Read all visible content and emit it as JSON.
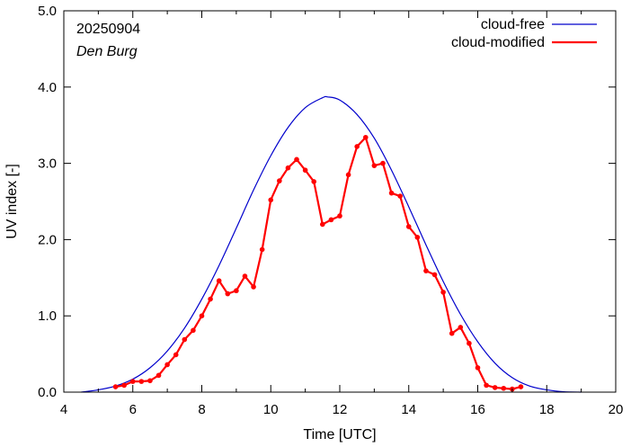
{
  "chart_data": {
    "type": "line",
    "xlabel": "Time  [UTC]",
    "ylabel": "UV index  [-]",
    "xlim": [
      4,
      20
    ],
    "ylim": [
      0,
      5
    ],
    "xticks": [
      4,
      6,
      8,
      10,
      12,
      14,
      16,
      18,
      20
    ],
    "yticks": [
      0,
      1,
      2,
      3,
      4,
      5
    ],
    "xtick_labels": [
      "4",
      "6",
      "8",
      "10",
      "12",
      "14",
      "16",
      "18",
      "20"
    ],
    "ytick_labels": [
      "0.0",
      "1.0",
      "2.0",
      "3.0",
      "4.0",
      "5.0"
    ],
    "grid": false,
    "legend_position": "top-right",
    "annotations": [
      "20250904",
      "Den Burg"
    ],
    "series": [
      {
        "name": "cloud-free",
        "color": "#0000cc",
        "markers": false,
        "x": [
          4.5,
          5.0,
          5.5,
          6.0,
          6.5,
          7.0,
          7.5,
          8.0,
          8.5,
          9.0,
          9.5,
          10.0,
          10.5,
          11.0,
          11.5,
          11.65,
          12.0,
          12.5,
          13.0,
          13.5,
          14.0,
          14.5,
          15.0,
          15.5,
          16.0,
          16.5,
          17.0,
          17.5,
          18.0,
          18.5,
          19.0
        ],
        "y": [
          0.0,
          0.03,
          0.08,
          0.17,
          0.32,
          0.54,
          0.84,
          1.22,
          1.66,
          2.15,
          2.65,
          3.1,
          3.47,
          3.73,
          3.86,
          3.87,
          3.83,
          3.64,
          3.33,
          2.91,
          2.43,
          1.93,
          1.45,
          1.02,
          0.66,
          0.38,
          0.19,
          0.08,
          0.03,
          0.005,
          0.0
        ]
      },
      {
        "name": "cloud-modified",
        "color": "#ff0000",
        "markers": true,
        "x": [
          5.5,
          5.75,
          6.0,
          6.25,
          6.5,
          6.75,
          7.0,
          7.25,
          7.5,
          7.75,
          8.0,
          8.25,
          8.5,
          8.75,
          9.0,
          9.25,
          9.5,
          9.75,
          10.0,
          10.25,
          10.5,
          10.75,
          11.0,
          11.25,
          11.5,
          11.75,
          12.0,
          12.25,
          12.5,
          12.75,
          13.0,
          13.25,
          13.5,
          13.75,
          14.0,
          14.25,
          14.5,
          14.75,
          15.0,
          15.25,
          15.5,
          15.75,
          16.0,
          16.25,
          16.5,
          16.75,
          17.0,
          17.25
        ],
        "y": [
          0.07,
          0.09,
          0.14,
          0.14,
          0.15,
          0.22,
          0.36,
          0.49,
          0.69,
          0.81,
          1.0,
          1.22,
          1.46,
          1.29,
          1.33,
          1.52,
          1.38,
          1.87,
          2.52,
          2.77,
          2.94,
          3.05,
          2.91,
          2.76,
          2.2,
          2.26,
          2.31,
          2.85,
          3.22,
          3.34,
          2.97,
          3.0,
          2.61,
          2.57,
          2.17,
          2.03,
          1.59,
          1.54,
          1.31,
          0.77,
          0.85,
          0.64,
          0.32,
          0.09,
          0.06,
          0.05,
          0.04,
          0.07
        ]
      }
    ]
  }
}
